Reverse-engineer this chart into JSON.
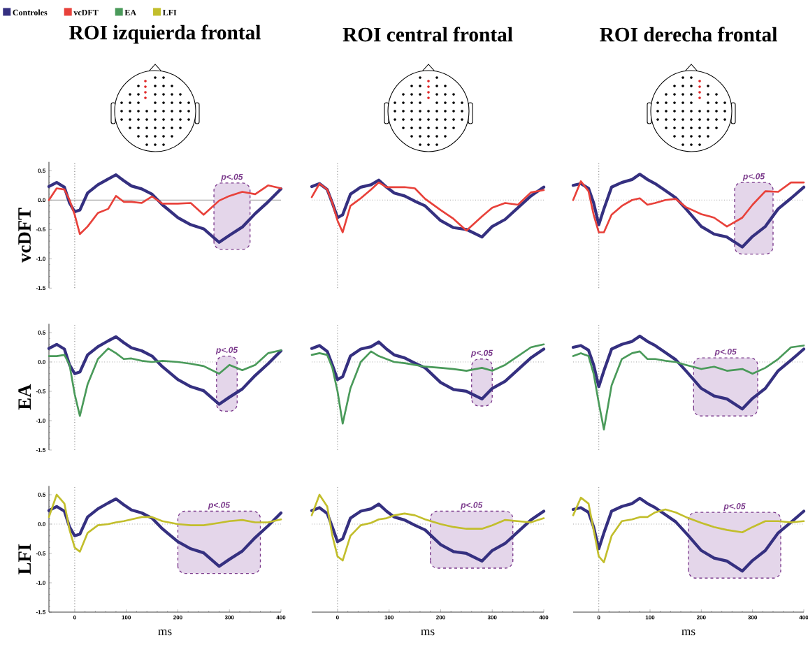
{
  "chart_data": [
    {
      "type": "line",
      "title": "ROI izquierda frontal",
      "ylabel": "vcDFT",
      "legend": "top left",
      "tick_labels": "y",
      "x": [
        -50,
        -35,
        -20,
        -10,
        0,
        10,
        25,
        45,
        65,
        80,
        95,
        110,
        130,
        150,
        170,
        200,
        225,
        250,
        280,
        300,
        325,
        350,
        375,
        400
      ],
      "xlim": [
        -50,
        400
      ],
      "ylim": [
        -1.5,
        0.65
      ],
      "yticks": [
        {
          "value": 0.5,
          "label": "0.5"
        },
        {
          "value": 0,
          "label": "0.0"
        },
        {
          "value": -0.5,
          "label": "-0.5"
        },
        {
          "value": -1,
          "label": "-1.0"
        },
        {
          "value": -1.5,
          "label": "-1.5"
        }
      ],
      "ref_lines": [
        {
          "axis": "x",
          "value": 0,
          "color": "#8a8a8a",
          "line_style": "dotted"
        },
        {
          "axis": "y",
          "value": 0,
          "color": "#8a8a8a",
          "line_style": "solid"
        }
      ],
      "bands": [
        {
          "axis": "x",
          "from": 270,
          "to": 340,
          "label": "p<.05",
          "color": "#e4d6ea"
        }
      ],
      "series": [
        {
          "name": "Controles",
          "color": "#353080",
          "values": [
            0.23,
            0.3,
            0.22,
            -0.05,
            -0.2,
            -0.17,
            0.12,
            0.26,
            0.36,
            0.43,
            0.33,
            0.24,
            0.19,
            0.1,
            -0.08,
            -0.3,
            -0.42,
            -0.49,
            -0.72,
            -0.6,
            -0.46,
            -0.23,
            -0.03,
            0.19
          ]
        },
        {
          "name": "vcDFT",
          "color": "#e8413a",
          "values": [
            0.0,
            0.2,
            0.18,
            0.0,
            -0.25,
            -0.58,
            -0.45,
            -0.22,
            -0.15,
            0.07,
            -0.03,
            -0.03,
            -0.05,
            0.06,
            -0.06,
            -0.06,
            -0.05,
            -0.25,
            -0.01,
            0.07,
            0.14,
            0.1,
            0.25,
            0.2
          ]
        }
      ]
    },
    {
      "type": "line",
      "title": "ROI central frontal",
      "tick_labels": false,
      "x": [
        -50,
        -35,
        -20,
        -10,
        0,
        10,
        25,
        45,
        65,
        80,
        95,
        110,
        130,
        150,
        170,
        200,
        225,
        250,
        280,
        300,
        325,
        350,
        375,
        400
      ],
      "xlim": [
        -50,
        400
      ],
      "ylim": [
        -1.5,
        0.65
      ],
      "ref_lines": [
        {
          "axis": "x",
          "value": 0,
          "color": "#9a9a9a",
          "line_style": "dotted"
        },
        {
          "axis": "y",
          "value": 0,
          "color": "#9a9a9a",
          "line_style": "dotted"
        }
      ],
      "series": [
        {
          "name": "Controles",
          "color": "#353080",
          "values": [
            0.23,
            0.28,
            0.18,
            -0.05,
            -0.3,
            -0.25,
            0.1,
            0.22,
            0.26,
            0.34,
            0.22,
            0.12,
            0.07,
            -0.02,
            -0.1,
            -0.35,
            -0.47,
            -0.5,
            -0.63,
            -0.45,
            -0.33,
            -0.13,
            0.07,
            0.22
          ]
        },
        {
          "name": "vcDFT",
          "color": "#e8413a",
          "values": [
            0.05,
            0.28,
            0.18,
            -0.05,
            -0.35,
            -0.55,
            -0.1,
            0.03,
            0.18,
            0.3,
            0.22,
            0.22,
            0.22,
            0.2,
            0.02,
            -0.17,
            -0.32,
            -0.52,
            -0.28,
            -0.13,
            -0.05,
            -0.08,
            0.13,
            0.17
          ]
        }
      ]
    },
    {
      "type": "line",
      "title": "ROI derecha frontal",
      "tick_labels": false,
      "x": [
        -50,
        -35,
        -20,
        -10,
        0,
        10,
        25,
        45,
        65,
        80,
        95,
        110,
        130,
        150,
        170,
        200,
        225,
        250,
        280,
        300,
        325,
        350,
        375,
        400
      ],
      "xlim": [
        -50,
        400
      ],
      "ylim": [
        -1.5,
        0.65
      ],
      "ref_lines": [
        {
          "axis": "x",
          "value": 0,
          "color": "#9a9a9a",
          "line_style": "dotted"
        },
        {
          "axis": "y",
          "value": 0,
          "color": "#9a9a9a",
          "line_style": "dotted"
        }
      ],
      "bands": [
        {
          "axis": "x",
          "from": 265,
          "to": 340,
          "label": "p<.05",
          "color": "#e4d6ea"
        }
      ],
      "series": [
        {
          "name": "Controles",
          "color": "#353080",
          "values": [
            0.25,
            0.28,
            0.2,
            -0.05,
            -0.42,
            -0.15,
            0.22,
            0.3,
            0.35,
            0.44,
            0.35,
            0.28,
            0.16,
            0.04,
            -0.15,
            -0.45,
            -0.58,
            -0.63,
            -0.8,
            -0.62,
            -0.45,
            -0.15,
            0.03,
            0.22
          ]
        },
        {
          "name": "vcDFT",
          "color": "#e8413a",
          "values": [
            0.0,
            0.32,
            0.15,
            -0.25,
            -0.55,
            -0.55,
            -0.25,
            -0.1,
            0.0,
            0.03,
            -0.08,
            -0.05,
            0.0,
            0.02,
            -0.12,
            -0.24,
            -0.3,
            -0.45,
            -0.3,
            -0.08,
            0.15,
            0.14,
            0.3,
            0.3
          ]
        }
      ]
    },
    {
      "type": "line",
      "ylabel": "EA",
      "tick_labels": "y",
      "x": [
        -50,
        -35,
        -20,
        -10,
        0,
        10,
        25,
        45,
        65,
        80,
        95,
        110,
        130,
        150,
        170,
        200,
        225,
        250,
        280,
        300,
        325,
        350,
        375,
        400
      ],
      "xlim": [
        -50,
        400
      ],
      "ylim": [
        -1.5,
        0.65
      ],
      "yticks": [
        {
          "value": 0.5,
          "label": "0.5"
        },
        {
          "value": 0,
          "label": "0.0"
        },
        {
          "value": -0.5,
          "label": "-0.5"
        },
        {
          "value": -1,
          "label": "-1.0"
        },
        {
          "value": -1.5,
          "label": "-1.5"
        }
      ],
      "ref_lines": [
        {
          "axis": "x",
          "value": 0,
          "color": "#9a9a9a",
          "line_style": "dotted"
        },
        {
          "axis": "y",
          "value": 0,
          "color": "#9a9a9a",
          "line_style": "dotted"
        }
      ],
      "bands": [
        {
          "axis": "x",
          "from": 275,
          "to": 315,
          "label": "p<.05",
          "color": "#e4d6ea"
        }
      ],
      "series": [
        {
          "name": "Controles",
          "color": "#353080",
          "values": [
            0.23,
            0.3,
            0.22,
            -0.05,
            -0.2,
            -0.17,
            0.12,
            0.26,
            0.36,
            0.43,
            0.33,
            0.24,
            0.19,
            0.1,
            -0.08,
            -0.3,
            -0.42,
            -0.49,
            -0.72,
            -0.6,
            -0.46,
            -0.23,
            -0.03,
            0.19
          ]
        },
        {
          "name": "EA",
          "color": "#4a9a5a",
          "values": [
            0.1,
            0.1,
            0.12,
            -0.05,
            -0.55,
            -0.92,
            -0.38,
            0.05,
            0.23,
            0.15,
            0.05,
            0.06,
            0.02,
            0.0,
            0.02,
            0.0,
            -0.03,
            -0.07,
            -0.2,
            -0.05,
            -0.14,
            -0.05,
            0.15,
            0.2
          ]
        }
      ]
    },
    {
      "type": "line",
      "tick_labels": false,
      "x": [
        -50,
        -35,
        -20,
        -10,
        0,
        10,
        25,
        45,
        65,
        80,
        95,
        110,
        130,
        150,
        170,
        200,
        225,
        250,
        280,
        300,
        325,
        350,
        375,
        400
      ],
      "xlim": [
        -50,
        400
      ],
      "ylim": [
        -1.5,
        0.65
      ],
      "ref_lines": [
        {
          "axis": "x",
          "value": 0,
          "color": "#9a9a9a",
          "line_style": "dotted"
        },
        {
          "axis": "y",
          "value": 0,
          "color": "#9a9a9a",
          "line_style": "dotted"
        }
      ],
      "bands": [
        {
          "axis": "x",
          "from": 260,
          "to": 300,
          "label": "p<.05",
          "color": "#e4d6ea"
        }
      ],
      "series": [
        {
          "name": "Controles",
          "color": "#353080",
          "values": [
            0.23,
            0.28,
            0.18,
            -0.05,
            -0.3,
            -0.25,
            0.1,
            0.22,
            0.26,
            0.34,
            0.22,
            0.12,
            0.07,
            -0.02,
            -0.1,
            -0.35,
            -0.47,
            -0.5,
            -0.63,
            -0.45,
            -0.33,
            -0.13,
            0.07,
            0.22
          ]
        },
        {
          "name": "EA",
          "color": "#4a9a5a",
          "values": [
            0.12,
            0.15,
            0.12,
            -0.1,
            -0.5,
            -1.05,
            -0.45,
            0.0,
            0.18,
            0.1,
            0.05,
            0.0,
            -0.02,
            -0.05,
            -0.08,
            -0.1,
            -0.12,
            -0.15,
            -0.1,
            -0.15,
            -0.05,
            0.1,
            0.25,
            0.3
          ]
        }
      ]
    },
    {
      "type": "line",
      "tick_labels": false,
      "x": [
        -50,
        -35,
        -20,
        -10,
        0,
        10,
        25,
        45,
        65,
        80,
        95,
        110,
        130,
        150,
        170,
        200,
        225,
        250,
        280,
        300,
        325,
        350,
        375,
        400
      ],
      "xlim": [
        -50,
        400
      ],
      "ylim": [
        -1.5,
        0.65
      ],
      "ref_lines": [
        {
          "axis": "x",
          "value": 0,
          "color": "#9a9a9a",
          "line_style": "dotted"
        },
        {
          "axis": "y",
          "value": 0,
          "color": "#9a9a9a",
          "line_style": "dotted"
        }
      ],
      "bands": [
        {
          "axis": "x",
          "from": 185,
          "to": 310,
          "label": "p<.05",
          "color": "#e4d6ea"
        }
      ],
      "series": [
        {
          "name": "Controles",
          "color": "#353080",
          "values": [
            0.25,
            0.28,
            0.2,
            -0.05,
            -0.42,
            -0.15,
            0.22,
            0.3,
            0.35,
            0.44,
            0.35,
            0.28,
            0.16,
            0.04,
            -0.15,
            -0.45,
            -0.58,
            -0.63,
            -0.8,
            -0.62,
            -0.45,
            -0.15,
            0.03,
            0.22
          ]
        },
        {
          "name": "EA",
          "color": "#4a9a5a",
          "values": [
            0.1,
            0.15,
            0.1,
            -0.2,
            -0.7,
            -1.15,
            -0.4,
            0.05,
            0.15,
            0.18,
            0.05,
            0.05,
            0.02,
            0.0,
            -0.05,
            -0.12,
            -0.08,
            -0.15,
            -0.12,
            -0.2,
            -0.1,
            0.05,
            0.25,
            0.28
          ]
        }
      ]
    },
    {
      "type": "line",
      "ylabel": "LFI",
      "xlabel": "ms",
      "x": [
        -50,
        -35,
        -20,
        -10,
        0,
        10,
        25,
        45,
        65,
        80,
        95,
        110,
        130,
        150,
        170,
        200,
        225,
        250,
        280,
        300,
        325,
        350,
        375,
        400
      ],
      "xlim": [
        -50,
        400
      ],
      "ylim": [
        -1.5,
        0.65
      ],
      "xticks": [
        0,
        100,
        200,
        300,
        400
      ],
      "yticks": [
        {
          "value": 0.5,
          "label": "0.5"
        },
        {
          "value": 0,
          "label": "0.0"
        },
        {
          "value": -0.5,
          "label": "-0.5"
        },
        {
          "value": -1,
          "label": "-1.0"
        },
        {
          "value": -1.5,
          "label": "-1.5"
        }
      ],
      "ref_lines": [
        {
          "axis": "x",
          "value": 0,
          "color": "#9a9a9a",
          "line_style": "dotted"
        },
        {
          "axis": "y",
          "value": 0,
          "color": "#9a9a9a",
          "line_style": "dotted"
        }
      ],
      "bands": [
        {
          "axis": "x",
          "from": 200,
          "to": 360,
          "label": "p<.05",
          "color": "#e4d6ea"
        }
      ],
      "series": [
        {
          "name": "Controles",
          "color": "#353080",
          "values": [
            0.23,
            0.3,
            0.22,
            -0.05,
            -0.2,
            -0.17,
            0.12,
            0.26,
            0.36,
            0.43,
            0.33,
            0.24,
            0.19,
            0.1,
            -0.08,
            -0.3,
            -0.42,
            -0.49,
            -0.72,
            -0.6,
            -0.46,
            -0.23,
            -0.03,
            0.19
          ]
        },
        {
          "name": "LFI",
          "color": "#c2be2c",
          "values": [
            0.12,
            0.5,
            0.35,
            -0.1,
            -0.4,
            -0.47,
            -0.15,
            -0.02,
            0.0,
            0.03,
            0.05,
            0.08,
            0.12,
            0.12,
            0.05,
            0.0,
            -0.02,
            -0.02,
            0.02,
            0.05,
            0.07,
            0.03,
            0.03,
            0.08
          ]
        }
      ]
    },
    {
      "type": "line",
      "xlabel": "ms",
      "tick_labels": "x",
      "x": [
        -50,
        -35,
        -20,
        -10,
        0,
        10,
        25,
        45,
        65,
        80,
        95,
        110,
        130,
        150,
        170,
        200,
        225,
        250,
        280,
        300,
        325,
        350,
        375,
        400
      ],
      "xlim": [
        -50,
        400
      ],
      "ylim": [
        -1.5,
        0.65
      ],
      "xticks": [
        0,
        100,
        200,
        300,
        400
      ],
      "ref_lines": [
        {
          "axis": "x",
          "value": 0,
          "color": "#9a9a9a",
          "line_style": "dotted"
        },
        {
          "axis": "y",
          "value": 0,
          "color": "#9a9a9a",
          "line_style": "dotted"
        }
      ],
      "bands": [
        {
          "axis": "x",
          "from": 180,
          "to": 340,
          "label": "p<.05",
          "color": "#e4d6ea"
        }
      ],
      "series": [
        {
          "name": "Controles",
          "color": "#353080",
          "values": [
            0.23,
            0.28,
            0.18,
            -0.05,
            -0.3,
            -0.25,
            0.1,
            0.22,
            0.26,
            0.34,
            0.22,
            0.12,
            0.07,
            -0.02,
            -0.1,
            -0.35,
            -0.47,
            -0.5,
            -0.63,
            -0.45,
            -0.33,
            -0.13,
            0.07,
            0.22
          ]
        },
        {
          "name": "LFI",
          "color": "#c2be2c",
          "values": [
            0.15,
            0.5,
            0.3,
            -0.2,
            -0.55,
            -0.62,
            -0.2,
            -0.02,
            0.02,
            0.08,
            0.1,
            0.15,
            0.18,
            0.15,
            0.08,
            0.0,
            -0.05,
            -0.08,
            -0.08,
            -0.02,
            0.07,
            0.05,
            0.03,
            0.1
          ]
        }
      ]
    },
    {
      "type": "line",
      "xlabel": "ms",
      "tick_labels": "x",
      "x": [
        -50,
        -35,
        -20,
        -10,
        0,
        10,
        25,
        45,
        65,
        80,
        95,
        110,
        130,
        150,
        170,
        200,
        225,
        250,
        280,
        300,
        325,
        350,
        375,
        400
      ],
      "xlim": [
        -50,
        400
      ],
      "ylim": [
        -1.5,
        0.65
      ],
      "xticks": [
        0,
        100,
        200,
        300,
        400
      ],
      "ref_lines": [
        {
          "axis": "x",
          "value": 0,
          "color": "#9a9a9a",
          "line_style": "dotted"
        },
        {
          "axis": "y",
          "value": 0,
          "color": "#9a9a9a",
          "line_style": "dotted"
        }
      ],
      "bands": [
        {
          "axis": "x",
          "from": 175,
          "to": 355,
          "label": "p<.05",
          "color": "#e4d6ea"
        }
      ],
      "series": [
        {
          "name": "Controles",
          "color": "#353080",
          "values": [
            0.25,
            0.28,
            0.2,
            -0.05,
            -0.42,
            -0.15,
            0.22,
            0.3,
            0.35,
            0.44,
            0.35,
            0.28,
            0.16,
            0.04,
            -0.15,
            -0.45,
            -0.58,
            -0.63,
            -0.8,
            -0.62,
            -0.45,
            -0.15,
            0.03,
            0.22
          ]
        },
        {
          "name": "LFI",
          "color": "#c2be2c",
          "values": [
            0.15,
            0.45,
            0.35,
            -0.1,
            -0.55,
            -0.65,
            -0.2,
            0.05,
            0.08,
            0.12,
            0.12,
            0.2,
            0.25,
            0.2,
            0.12,
            0.02,
            -0.05,
            -0.1,
            -0.14,
            -0.05,
            0.05,
            0.05,
            0.03,
            0.05
          ]
        }
      ]
    }
  ]
}
